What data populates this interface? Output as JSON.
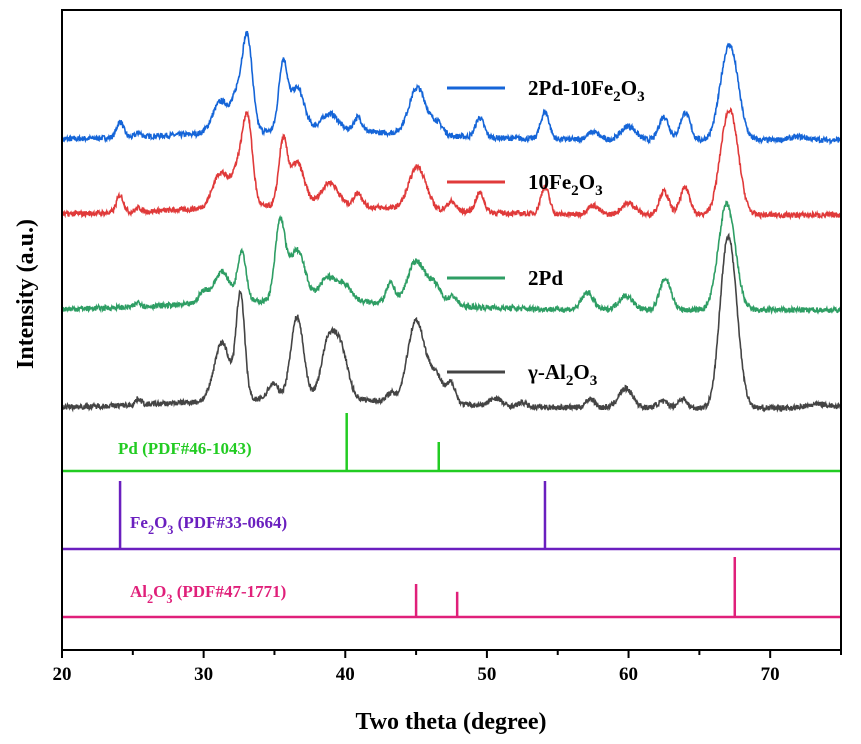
{
  "chart_data": {
    "type": "line",
    "xlabel": "Two theta (degree)",
    "ylabel": "Intensity (a.u.)",
    "xlim": [
      20,
      75
    ],
    "x_ticks": [
      "20",
      "30",
      "40",
      "50",
      "60",
      "70"
    ],
    "y_ticks_shown": false,
    "legend_position": "top-right",
    "series": [
      {
        "name_parts": [
          [
            "2Pd-10Fe",
            false
          ],
          [
            "2",
            true
          ],
          [
            "O",
            false
          ],
          [
            "3",
            true
          ]
        ],
        "color": "#1565D8",
        "offset": 3,
        "peaks": [
          {
            "x": 24.1,
            "h": 0.2,
            "w": 0.25
          },
          {
            "x": 25.4,
            "h": 0.05,
            "w": 0.2
          },
          {
            "x": 31.2,
            "h": 0.4,
            "w": 0.55
          },
          {
            "x": 33.1,
            "h": 1.15,
            "w": 0.35
          },
          {
            "x": 32.4,
            "h": 0.45,
            "w": 0.4
          },
          {
            "x": 35.6,
            "h": 0.85,
            "w": 0.3
          },
          {
            "x": 36.6,
            "h": 0.55,
            "w": 0.5
          },
          {
            "x": 38.9,
            "h": 0.22,
            "w": 0.6
          },
          {
            "x": 40.9,
            "h": 0.18,
            "w": 0.3
          },
          {
            "x": 45.1,
            "h": 0.6,
            "w": 0.6
          },
          {
            "x": 46.5,
            "h": 0.15,
            "w": 0.4
          },
          {
            "x": 49.5,
            "h": 0.25,
            "w": 0.3
          },
          {
            "x": 54.1,
            "h": 0.35,
            "w": 0.3
          },
          {
            "x": 57.5,
            "h": 0.1,
            "w": 0.4
          },
          {
            "x": 60.0,
            "h": 0.18,
            "w": 0.5
          },
          {
            "x": 62.5,
            "h": 0.3,
            "w": 0.35
          },
          {
            "x": 64.0,
            "h": 0.35,
            "w": 0.35
          },
          {
            "x": 66.7,
            "h": 0.45,
            "w": 0.5
          },
          {
            "x": 67.3,
            "h": 0.95,
            "w": 0.55
          },
          {
            "x": 72.0,
            "h": 0.04,
            "w": 0.6
          }
        ]
      },
      {
        "name_parts": [
          [
            "10Fe",
            false
          ],
          [
            "2",
            true
          ],
          [
            "O",
            false
          ],
          [
            "3",
            true
          ]
        ],
        "color": "#E03A3A",
        "offset": 2,
        "peaks": [
          {
            "x": 24.1,
            "h": 0.22,
            "w": 0.25
          },
          {
            "x": 25.4,
            "h": 0.05,
            "w": 0.2
          },
          {
            "x": 31.2,
            "h": 0.45,
            "w": 0.55
          },
          {
            "x": 33.1,
            "h": 1.1,
            "w": 0.35
          },
          {
            "x": 32.4,
            "h": 0.45,
            "w": 0.4
          },
          {
            "x": 35.6,
            "h": 0.8,
            "w": 0.3
          },
          {
            "x": 36.6,
            "h": 0.55,
            "w": 0.5
          },
          {
            "x": 38.9,
            "h": 0.3,
            "w": 0.6
          },
          {
            "x": 40.9,
            "h": 0.18,
            "w": 0.3
          },
          {
            "x": 45.1,
            "h": 0.55,
            "w": 0.6
          },
          {
            "x": 47.5,
            "h": 0.12,
            "w": 0.3
          },
          {
            "x": 49.5,
            "h": 0.25,
            "w": 0.3
          },
          {
            "x": 54.1,
            "h": 0.35,
            "w": 0.3
          },
          {
            "x": 57.5,
            "h": 0.12,
            "w": 0.4
          },
          {
            "x": 60.0,
            "h": 0.15,
            "w": 0.5
          },
          {
            "x": 62.5,
            "h": 0.3,
            "w": 0.35
          },
          {
            "x": 64.0,
            "h": 0.35,
            "w": 0.35
          },
          {
            "x": 66.7,
            "h": 0.5,
            "w": 0.5
          },
          {
            "x": 67.3,
            "h": 1.05,
            "w": 0.55
          }
        ]
      },
      {
        "name_parts": [
          [
            "2Pd",
            false
          ]
        ],
        "color": "#2E9E64",
        "offset": 1,
        "peaks": [
          {
            "x": 25.4,
            "h": 0.06,
            "w": 0.2
          },
          {
            "x": 30.0,
            "h": 0.15,
            "w": 0.35
          },
          {
            "x": 31.3,
            "h": 0.4,
            "w": 0.55
          },
          {
            "x": 32.7,
            "h": 0.65,
            "w": 0.3
          },
          {
            "x": 35.4,
            "h": 1.0,
            "w": 0.35
          },
          {
            "x": 36.6,
            "h": 0.65,
            "w": 0.55
          },
          {
            "x": 38.8,
            "h": 0.3,
            "w": 0.6
          },
          {
            "x": 40.0,
            "h": 0.18,
            "w": 0.5
          },
          {
            "x": 43.2,
            "h": 0.25,
            "w": 0.3
          },
          {
            "x": 45.0,
            "h": 0.55,
            "w": 0.6
          },
          {
            "x": 46.3,
            "h": 0.25,
            "w": 0.5
          },
          {
            "x": 47.6,
            "h": 0.12,
            "w": 0.3
          },
          {
            "x": 57.1,
            "h": 0.22,
            "w": 0.4
          },
          {
            "x": 59.8,
            "h": 0.18,
            "w": 0.5
          },
          {
            "x": 62.6,
            "h": 0.4,
            "w": 0.4
          },
          {
            "x": 66.6,
            "h": 0.5,
            "w": 0.5
          },
          {
            "x": 67.1,
            "h": 1.0,
            "w": 0.55
          }
        ]
      },
      {
        "name_parts": [
          [
            "γ-Al",
            false
          ],
          [
            "2",
            true
          ],
          [
            "O",
            false
          ],
          [
            "3",
            true
          ]
        ],
        "color": "#444444",
        "offset": 0,
        "peaks": [
          {
            "x": 25.4,
            "h": 0.08,
            "w": 0.2
          },
          {
            "x": 31.3,
            "h": 0.75,
            "w": 0.55
          },
          {
            "x": 32.6,
            "h": 1.35,
            "w": 0.3
          },
          {
            "x": 34.9,
            "h": 0.2,
            "w": 0.35
          },
          {
            "x": 36.6,
            "h": 1.05,
            "w": 0.45
          },
          {
            "x": 38.8,
            "h": 0.7,
            "w": 0.5
          },
          {
            "x": 39.7,
            "h": 0.6,
            "w": 0.5
          },
          {
            "x": 43.2,
            "h": 0.1,
            "w": 0.25
          },
          {
            "x": 45.0,
            "h": 1.05,
            "w": 0.6
          },
          {
            "x": 46.4,
            "h": 0.35,
            "w": 0.5
          },
          {
            "x": 47.5,
            "h": 0.25,
            "w": 0.3
          },
          {
            "x": 50.6,
            "h": 0.1,
            "w": 0.4
          },
          {
            "x": 52.5,
            "h": 0.05,
            "w": 0.3
          },
          {
            "x": 57.3,
            "h": 0.12,
            "w": 0.3
          },
          {
            "x": 59.8,
            "h": 0.25,
            "w": 0.5
          },
          {
            "x": 62.4,
            "h": 0.08,
            "w": 0.4
          },
          {
            "x": 63.8,
            "h": 0.12,
            "w": 0.3
          },
          {
            "x": 66.7,
            "h": 0.7,
            "w": 0.45
          },
          {
            "x": 67.2,
            "h": 1.75,
            "w": 0.55
          },
          {
            "x": 73.5,
            "h": 0.05,
            "w": 0.8
          }
        ]
      }
    ],
    "reference_patterns": [
      {
        "label_parts": [
          [
            "Pd (PDF#46-1043)",
            false
          ]
        ],
        "color": "#22CC22",
        "lines": [
          {
            "x": 40.1,
            "rel": 1.0
          },
          {
            "x": 46.6,
            "rel": 0.5
          }
        ]
      },
      {
        "label_parts": [
          [
            "Fe",
            false
          ],
          [
            "2",
            true
          ],
          [
            "O",
            false
          ],
          [
            "3",
            true
          ],
          [
            " (PDF#33-0664)",
            false
          ]
        ],
        "color": "#6A1FBF",
        "lines": [
          {
            "x": 24.1,
            "rel": 1.0
          },
          {
            "x": 54.1,
            "rel": 1.0
          }
        ]
      },
      {
        "label_parts": [
          [
            "Al",
            false
          ],
          [
            "2",
            true
          ],
          [
            "O",
            false
          ],
          [
            "3",
            true
          ],
          [
            " (PDF#47-1771)",
            false
          ]
        ],
        "color": "#E0207A",
        "lines": [
          {
            "x": 45.0,
            "rel": 0.55
          },
          {
            "x": 47.9,
            "rel": 0.42
          },
          {
            "x": 67.5,
            "rel": 1.0
          }
        ]
      }
    ]
  }
}
